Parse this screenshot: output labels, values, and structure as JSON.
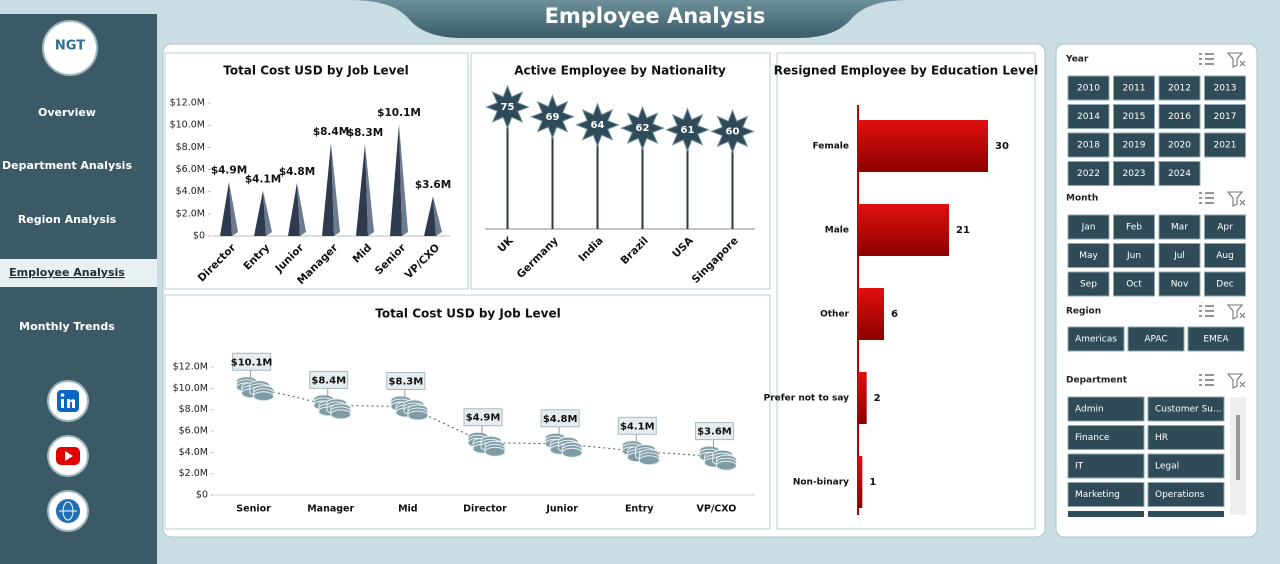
{
  "header": {
    "title": "Employee Analysis"
  },
  "logo": {
    "text": "NGT"
  },
  "nav": {
    "items": [
      "Overview",
      "Department Analysis",
      "Region Analysis",
      "Employee Analysis",
      "Monthly Trends"
    ],
    "active": 3
  },
  "chart_data": [
    {
      "type": "cone",
      "title": "Total Cost USD by Job Level",
      "categories": [
        "Director",
        "Entry",
        "Junior",
        "Manager",
        "Mid",
        "Senior",
        "VP/CXO"
      ],
      "values": [
        4900000,
        4100000,
        4800000,
        8400000,
        8300000,
        10100000,
        3600000
      ],
      "value_labels": [
        "$4.9M",
        "$4.1M",
        "$4.8M",
        "$8.4M",
        "$8.3M",
        "$10.1M",
        "$3.6M"
      ],
      "color": "#2e3b4e",
      "ylim": [
        0,
        12000000
      ],
      "yticks": [
        {
          "value": 0,
          "label": "$0"
        },
        {
          "value": 2000000,
          "label": "$2.0M"
        },
        {
          "value": 4000000,
          "label": "$4.0M"
        },
        {
          "value": 6000000,
          "label": "$6.0M"
        },
        {
          "value": 8000000,
          "label": "$8.0M"
        },
        {
          "value": 10000000,
          "label": "$10.0M"
        },
        {
          "value": 12000000,
          "label": "$12.0M"
        }
      ]
    },
    {
      "type": "lollipop",
      "title": "Active Employee by Nationality",
      "categories": [
        "UK",
        "Germany",
        "India",
        "Brazil",
        "USA",
        "Singapore"
      ],
      "values": [
        75,
        69,
        64,
        62,
        61,
        60
      ],
      "color": "#2f4b5a"
    },
    {
      "type": "barh",
      "title": "Resigned Employee by Education Level",
      "categories": [
        "Female",
        "Male",
        "Other",
        "Prefer not to say",
        "Non-binary"
      ],
      "values": [
        30,
        21,
        6,
        2,
        1
      ],
      "color": "#c00000"
    },
    {
      "type": "line",
      "title": "Total Cost USD by Job Level",
      "categories": [
        "Senior",
        "Manager",
        "Mid",
        "Director",
        "Junior",
        "Entry",
        "VP/CXO"
      ],
      "values": [
        10100000,
        8400000,
        8300000,
        4900000,
        4800000,
        4100000,
        3600000
      ],
      "value_labels": [
        "$10.1M",
        "$8.4M",
        "$8.3M",
        "$4.9M",
        "$4.8M",
        "$4.1M",
        "$3.6M"
      ],
      "color": "#7f9ca6",
      "ylim": [
        0,
        12000000
      ],
      "yticks": [
        {
          "value": 0,
          "label": "$0"
        },
        {
          "value": 2000000,
          "label": "$2.0M"
        },
        {
          "value": 4000000,
          "label": "$4.0M"
        },
        {
          "value": 6000000,
          "label": "$6.0M"
        },
        {
          "value": 8000000,
          "label": "$8.0M"
        },
        {
          "value": 10000000,
          "label": "$10.0M"
        },
        {
          "value": 12000000,
          "label": "$12.0M"
        }
      ]
    }
  ],
  "slicers": [
    {
      "title": "Year",
      "items": [
        "2010",
        "2011",
        "2012",
        "2013",
        "2014",
        "2015",
        "2016",
        "2017",
        "2018",
        "2019",
        "2020",
        "2021",
        "2022",
        "2023",
        "2024"
      ]
    },
    {
      "title": "Month",
      "items": [
        "Jan",
        "Feb",
        "Mar",
        "Apr",
        "May",
        "Jun",
        "Jul",
        "Aug",
        "Sep",
        "Oct",
        "Nov",
        "Dec"
      ]
    },
    {
      "title": "Region",
      "items": [
        "Americas",
        "APAC",
        "EMEA"
      ]
    },
    {
      "title": "Department",
      "items": [
        "Admin",
        "Customer Su...",
        "Finance",
        "HR",
        "IT",
        "Legal",
        "Marketing",
        "Operations"
      ]
    }
  ]
}
